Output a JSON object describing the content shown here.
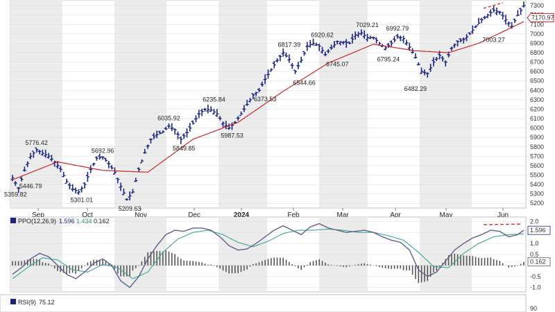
{
  "chart_data": [
    {
      "type": "ohlc",
      "title": "",
      "ylim": [
        5150,
        7360
      ],
      "y_ticks": [
        5200,
        5300,
        5400,
        5500,
        5600,
        5700,
        5800,
        5900,
        6000,
        6100,
        6200,
        6300,
        6400,
        6500,
        6600,
        6700,
        6800,
        6900,
        7000,
        7100,
        7200,
        7300
      ],
      "x_labels": [
        "Sep",
        "Oct",
        "Nov",
        "Dec",
        "2024",
        "Feb",
        "Mar",
        "Apr",
        "May",
        "Jun"
      ],
      "last_price_label": "7170.97",
      "price_keypoints": [
        [
          0,
          5470
        ],
        [
          4,
          5360
        ],
        [
          8,
          5550
        ],
        [
          12,
          5700
        ],
        [
          16,
          5770
        ],
        [
          20,
          5730
        ],
        [
          24,
          5700
        ],
        [
          28,
          5640
        ],
        [
          32,
          5560
        ],
        [
          36,
          5430
        ],
        [
          40,
          5350
        ],
        [
          44,
          5320
        ],
        [
          48,
          5400
        ],
        [
          52,
          5560
        ],
        [
          56,
          5680
        ],
        [
          60,
          5690
        ],
        [
          64,
          5620
        ],
        [
          68,
          5530
        ],
        [
          72,
          5380
        ],
        [
          76,
          5240
        ],
        [
          80,
          5320
        ],
        [
          84,
          5560
        ],
        [
          88,
          5740
        ],
        [
          92,
          5880
        ],
        [
          96,
          5930
        ],
        [
          100,
          5960
        ],
        [
          104,
          6020
        ],
        [
          108,
          5980
        ],
        [
          112,
          5880
        ],
        [
          116,
          5950
        ],
        [
          120,
          6050
        ],
        [
          124,
          6150
        ],
        [
          128,
          6200
        ],
        [
          132,
          6190
        ],
        [
          136,
          6150
        ],
        [
          140,
          6050
        ],
        [
          144,
          6000
        ],
        [
          148,
          6060
        ],
        [
          152,
          6150
        ],
        [
          156,
          6250
        ],
        [
          160,
          6350
        ],
        [
          164,
          6400
        ],
        [
          168,
          6520
        ],
        [
          172,
          6620
        ],
        [
          176,
          6720
        ],
        [
          180,
          6800
        ],
        [
          184,
          6730
        ],
        [
          188,
          6600
        ],
        [
          192,
          6720
        ],
        [
          196,
          6870
        ],
        [
          200,
          6900
        ],
        [
          204,
          6870
        ],
        [
          208,
          6780
        ],
        [
          212,
          6850
        ],
        [
          216,
          6920
        ],
        [
          220,
          6910
        ],
        [
          224,
          6900
        ],
        [
          228,
          6990
        ],
        [
          232,
          7010
        ],
        [
          236,
          6960
        ],
        [
          240,
          6960
        ],
        [
          244,
          6900
        ],
        [
          248,
          6850
        ],
        [
          252,
          6900
        ],
        [
          256,
          6970
        ],
        [
          260,
          6950
        ],
        [
          264,
          6860
        ],
        [
          268,
          6750
        ],
        [
          272,
          6600
        ],
        [
          276,
          6580
        ],
        [
          280,
          6700
        ],
        [
          284,
          6770
        ],
        [
          288,
          6700
        ],
        [
          292,
          6850
        ],
        [
          296,
          6920
        ],
        [
          300,
          6940
        ],
        [
          304,
          7000
        ],
        [
          308,
          7080
        ],
        [
          312,
          7150
        ],
        [
          316,
          7200
        ],
        [
          320,
          7250
        ],
        [
          324,
          7230
        ],
        [
          328,
          7150
        ],
        [
          332,
          7080
        ],
        [
          336,
          7200
        ],
        [
          340,
          7300
        ]
      ],
      "ma_keypoints": [
        [
          0,
          5450
        ],
        [
          30,
          5640
        ],
        [
          60,
          5550
        ],
        [
          90,
          5530
        ],
        [
          120,
          5880
        ],
        [
          150,
          6060
        ],
        [
          180,
          6390
        ],
        [
          210,
          6690
        ],
        [
          240,
          6890
        ],
        [
          268,
          6820
        ],
        [
          290,
          6800
        ],
        [
          310,
          6900
        ],
        [
          340,
          7130
        ]
      ],
      "annotations": [
        {
          "label": "5776.42",
          "xi": 16,
          "y": 5776.42,
          "pos": "above"
        },
        {
          "label": "5359.82",
          "xi": 2,
          "y": 5359.82,
          "pos": "below"
        },
        {
          "label": "5446.79",
          "xi": 12,
          "y": 5446.79,
          "pos": "below"
        },
        {
          "label": "5301.01",
          "xi": 46,
          "y": 5301.01,
          "pos": "below"
        },
        {
          "label": "5692.96",
          "xi": 60,
          "y": 5692.96,
          "pos": "above"
        },
        {
          "label": "5209.63",
          "xi": 78,
          "y": 5209.63,
          "pos": "below"
        },
        {
          "label": "6035.92",
          "xi": 104,
          "y": 6035.92,
          "pos": "above"
        },
        {
          "label": "5849.85",
          "xi": 114,
          "y": 5849.85,
          "pos": "below"
        },
        {
          "label": "6235.84",
          "xi": 134,
          "y": 6235.84,
          "pos": "above"
        },
        {
          "label": "5987.53",
          "xi": 146,
          "y": 5987.53,
          "pos": "below"
        },
        {
          "label": "6373.53",
          "xi": 168,
          "y": 6373.53,
          "pos": "below"
        },
        {
          "label": "6817.39",
          "xi": 184,
          "y": 6817.39,
          "pos": "above"
        },
        {
          "label": "6544.66",
          "xi": 194,
          "y": 6544.66,
          "pos": "below"
        },
        {
          "label": "6920.62",
          "xi": 206,
          "y": 6920.62,
          "pos": "above"
        },
        {
          "label": "6745.07",
          "xi": 216,
          "y": 6745.07,
          "pos": "below"
        },
        {
          "label": "7029.21",
          "xi": 236,
          "y": 7029.21,
          "pos": "above"
        },
        {
          "label": "6795.24",
          "xi": 250,
          "y": 6795.24,
          "pos": "below"
        },
        {
          "label": "6992.79",
          "xi": 256,
          "y": 6992.79,
          "pos": "above"
        },
        {
          "label": "6482.29",
          "xi": 268,
          "y": 6482.29,
          "pos": "below"
        },
        {
          "label": "7003.27",
          "xi": 320,
          "y": 7003.27,
          "pos": "below"
        }
      ]
    },
    {
      "type": "indicator",
      "legend": "PPO(12,26,9)",
      "values": [
        "1.596",
        "1.434",
        "0.162"
      ],
      "ylim": [
        -1.2,
        2.2
      ],
      "y_ticks": [
        "2.0",
        "1.5",
        "1.0",
        "0.5",
        "-0.5",
        "-1.0"
      ],
      "line_label": "1.596",
      "hist_label": "0.162",
      "ppo_keypoints": [
        [
          0,
          -0.4
        ],
        [
          6,
          -0.1
        ],
        [
          12,
          0.3
        ],
        [
          18,
          0.55
        ],
        [
          24,
          0.4
        ],
        [
          30,
          0.0
        ],
        [
          36,
          -0.4
        ],
        [
          42,
          -0.6
        ],
        [
          48,
          -0.3
        ],
        [
          54,
          0.1
        ],
        [
          60,
          0.3
        ],
        [
          66,
          0.0
        ],
        [
          72,
          -0.7
        ],
        [
          78,
          -1.0
        ],
        [
          84,
          -0.5
        ],
        [
          90,
          0.3
        ],
        [
          96,
          0.9
        ],
        [
          102,
          1.4
        ],
        [
          108,
          1.6
        ],
        [
          114,
          1.55
        ],
        [
          120,
          1.7
        ],
        [
          126,
          1.7
        ],
        [
          132,
          1.6
        ],
        [
          138,
          1.3
        ],
        [
          144,
          0.9
        ],
        [
          150,
          0.7
        ],
        [
          156,
          0.75
        ],
        [
          162,
          1.0
        ],
        [
          168,
          1.3
        ],
        [
          174,
          1.6
        ],
        [
          180,
          1.8
        ],
        [
          186,
          1.6
        ],
        [
          192,
          1.4
        ],
        [
          198,
          1.75
        ],
        [
          204,
          1.9
        ],
        [
          210,
          1.7
        ],
        [
          216,
          1.6
        ],
        [
          222,
          1.5
        ],
        [
          228,
          1.55
        ],
        [
          234,
          1.6
        ],
        [
          240,
          1.5
        ],
        [
          246,
          1.3
        ],
        [
          252,
          1.15
        ],
        [
          258,
          1.05
        ],
        [
          264,
          0.7
        ],
        [
          270,
          -0.2
        ],
        [
          276,
          -0.5
        ],
        [
          282,
          -0.3
        ],
        [
          288,
          0.2
        ],
        [
          294,
          0.7
        ],
        [
          300,
          1.0
        ],
        [
          306,
          1.25
        ],
        [
          312,
          1.4
        ],
        [
          318,
          1.6
        ],
        [
          324,
          1.55
        ],
        [
          330,
          1.3
        ],
        [
          336,
          1.4
        ],
        [
          340,
          1.6
        ]
      ],
      "signal_keypoints": [
        [
          0,
          -0.6
        ],
        [
          10,
          -0.1
        ],
        [
          20,
          0.35
        ],
        [
          30,
          0.25
        ],
        [
          40,
          -0.2
        ],
        [
          50,
          -0.3
        ],
        [
          60,
          0.05
        ],
        [
          70,
          -0.1
        ],
        [
          80,
          -0.6
        ],
        [
          90,
          -0.3
        ],
        [
          100,
          0.6
        ],
        [
          110,
          1.2
        ],
        [
          120,
          1.5
        ],
        [
          130,
          1.6
        ],
        [
          140,
          1.4
        ],
        [
          150,
          1.05
        ],
        [
          160,
          0.85
        ],
        [
          170,
          1.1
        ],
        [
          180,
          1.45
        ],
        [
          190,
          1.6
        ],
        [
          200,
          1.6
        ],
        [
          210,
          1.65
        ],
        [
          220,
          1.6
        ],
        [
          230,
          1.5
        ],
        [
          240,
          1.5
        ],
        [
          250,
          1.35
        ],
        [
          260,
          1.15
        ],
        [
          270,
          0.6
        ],
        [
          280,
          -0.05
        ],
        [
          290,
          -0.1
        ],
        [
          300,
          0.55
        ],
        [
          310,
          1.0
        ],
        [
          320,
          1.3
        ],
        [
          330,
          1.4
        ],
        [
          340,
          1.434
        ]
      ],
      "dashed_level": 1.85
    },
    {
      "type": "indicator",
      "legend": "RSI(9)",
      "values": [
        "75.12"
      ],
      "y_ticks": [
        "90"
      ]
    }
  ]
}
